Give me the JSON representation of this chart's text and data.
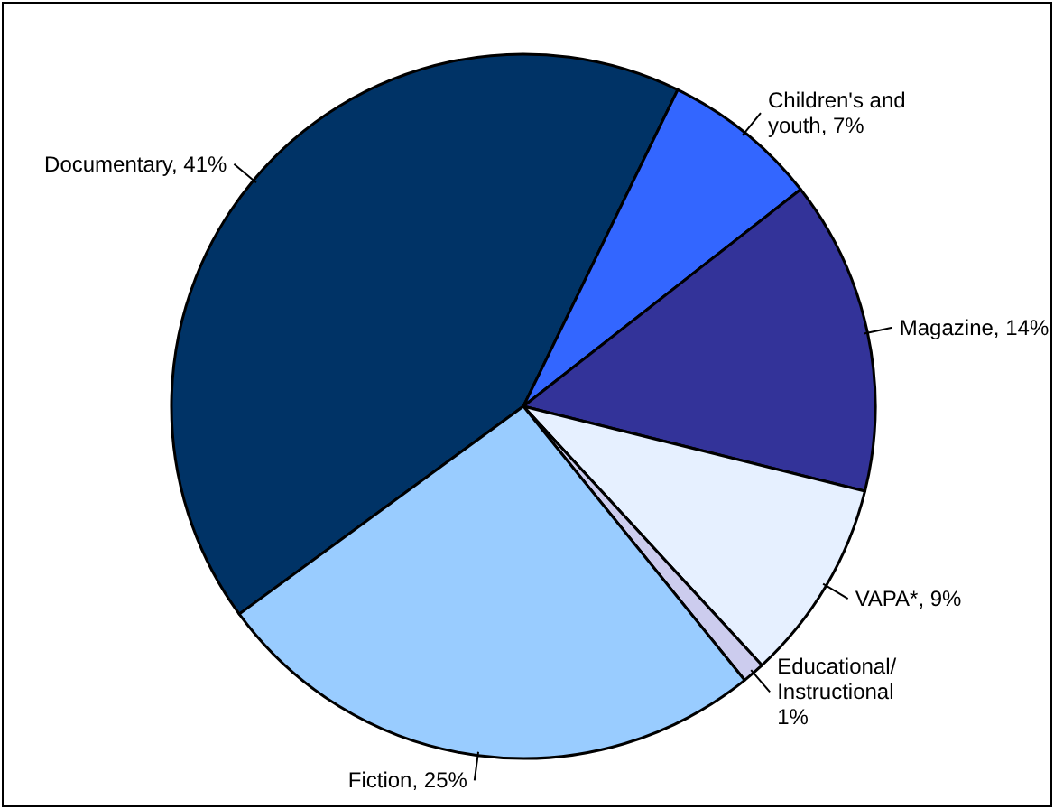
{
  "chart_data": {
    "type": "pie",
    "categories": [
      "Documentary",
      "Children's and youth",
      "Magazine",
      "VAPA*",
      "Educational/ Instructional",
      "Fiction"
    ],
    "values": [
      41,
      7,
      14,
      9,
      1,
      25
    ],
    "value_labels": [
      "41%",
      "7%",
      "14%",
      "9%",
      "1%",
      "25%"
    ],
    "colors": [
      "#003366",
      "#3366ff",
      "#333399",
      "#e6f0ff",
      "#ccccee",
      "#99ccff"
    ]
  }
}
